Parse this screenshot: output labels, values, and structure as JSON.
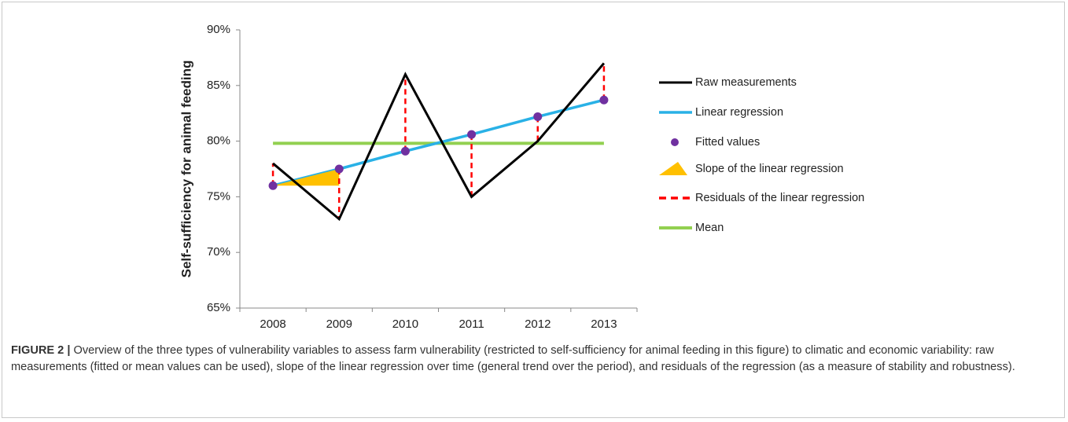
{
  "chart_data": {
    "type": "line",
    "y_label": "Self-sufficiency for animal feeding",
    "categories": [
      "2008",
      "2009",
      "2010",
      "2011",
      "2012",
      "2013"
    ],
    "ylim": [
      65,
      90
    ],
    "yticks": [
      {
        "value": 65,
        "label": "65%"
      },
      {
        "value": 70,
        "label": "70%"
      },
      {
        "value": 75,
        "label": "75%"
      },
      {
        "value": 80,
        "label": "80%"
      },
      {
        "value": 85,
        "label": "85%"
      },
      {
        "value": 90,
        "label": "90%"
      }
    ],
    "series": [
      {
        "name": "Raw measurements",
        "color": "#000000",
        "marker": "line",
        "values": [
          78,
          73,
          86,
          75,
          80,
          87
        ]
      },
      {
        "name": "Linear regression",
        "color": "#29b1e6",
        "marker": "regression"
      },
      {
        "name": "Fitted values",
        "color": "#7030a0",
        "marker": "dot",
        "values": [
          76,
          77.5,
          79.1,
          80.6,
          82.2,
          83.7
        ]
      },
      {
        "name": "Slope of the linear regression",
        "color": "#ffc000",
        "marker": "slope"
      },
      {
        "name": "Residuals of the linear regression",
        "color": "#ff0000",
        "marker": "residual"
      },
      {
        "name": "Mean",
        "color": "#92d050",
        "marker": "mean",
        "value": 79.8
      }
    ]
  },
  "caption": {
    "label": "FIGURE 2 |",
    "text": "Overview of the three types of vulnerability variables to assess farm vulnerability (restricted to self-sufficiency for animal feeding in this figure) to climatic and economic variability: raw measurements (fitted or mean values can be used), slope of the linear regression over time (general trend over the period), and residuals of the regression (as a measure of stability and robustness)."
  }
}
